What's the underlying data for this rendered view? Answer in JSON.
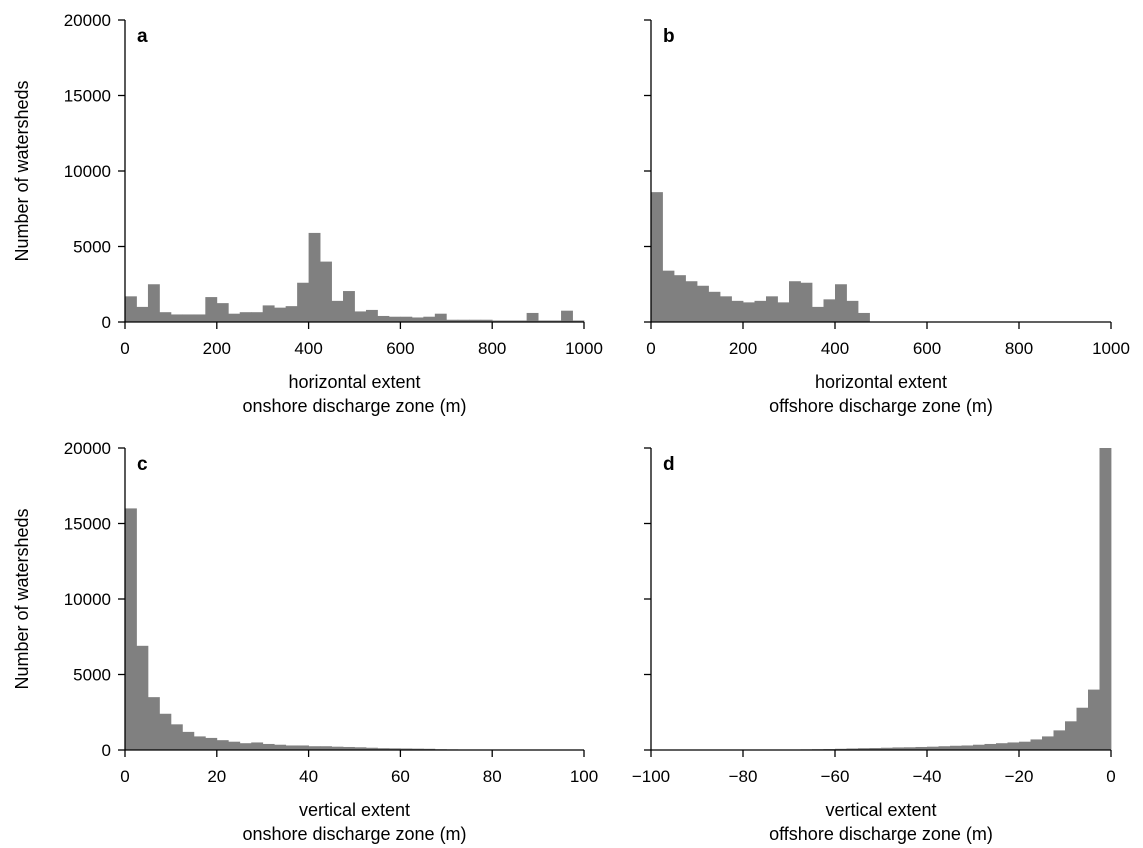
{
  "figure": {
    "bar_color": "#808080",
    "y_axis_label": "Number of watersheds"
  },
  "chart_data": [
    {
      "panel": "a",
      "type": "bar",
      "bin_width": 25,
      "x_start": 0,
      "values": [
        1700,
        1000,
        2500,
        650,
        500,
        500,
        500,
        1650,
        1250,
        550,
        650,
        650,
        1100,
        950,
        1050,
        2600,
        5900,
        4000,
        1400,
        2050,
        700,
        800,
        400,
        350,
        350,
        300,
        350,
        550,
        150,
        150,
        150,
        150,
        100,
        100,
        100,
        600,
        100,
        100,
        750,
        100
      ],
      "xlim": [
        0,
        1000
      ],
      "ylim": [
        0,
        20000
      ],
      "xticks": [
        "0",
        "200",
        "400",
        "600",
        "800",
        "1000"
      ],
      "yticks": [
        "0",
        "5000",
        "10000",
        "15000",
        "20000"
      ],
      "xlabel": [
        "horizontal extent",
        "onshore discharge zone (m)"
      ],
      "ylabel": "Number of watersheds"
    },
    {
      "panel": "b",
      "type": "bar",
      "bin_width": 25,
      "x_start": 0,
      "values": [
        8600,
        3400,
        3100,
        2700,
        2400,
        2000,
        1700,
        1400,
        1300,
        1400,
        1700,
        1300,
        2700,
        2600,
        1000,
        1500,
        2500,
        1400,
        600
      ],
      "xlim": [
        0,
        1000
      ],
      "ylim": [
        0,
        20000
      ],
      "xticks": [
        "0",
        "200",
        "400",
        "600",
        "800",
        "1000"
      ],
      "yticks": [
        "0",
        "5000",
        "10000",
        "15000",
        "20000"
      ],
      "xlabel": [
        "horizontal extent",
        "offshore discharge zone (m)"
      ],
      "ylabel": ""
    },
    {
      "panel": "c",
      "type": "bar",
      "bin_width": 2.5,
      "x_start": 0,
      "values": [
        16000,
        6900,
        3500,
        2400,
        1700,
        1200,
        900,
        800,
        650,
        550,
        450,
        500,
        400,
        350,
        300,
        300,
        250,
        250,
        220,
        200,
        180,
        150,
        120,
        110,
        100,
        90,
        80,
        50,
        40,
        30,
        30,
        20,
        20,
        20,
        15,
        15,
        10,
        10,
        10,
        10
      ],
      "xlim": [
        0,
        100
      ],
      "ylim": [
        0,
        20000
      ],
      "xticks": [
        "0",
        "20",
        "40",
        "60",
        "80",
        "100"
      ],
      "yticks": [
        "0",
        "5000",
        "10000",
        "15000",
        "20000"
      ],
      "xlabel": [
        "vertical extent",
        "onshore discharge zone (m)"
      ],
      "ylabel": "Number of watersheds"
    },
    {
      "panel": "d",
      "type": "bar",
      "bin_width": 2.5,
      "x_start": -100,
      "values": [
        10,
        10,
        10,
        10,
        10,
        10,
        10,
        10,
        20,
        20,
        20,
        20,
        30,
        40,
        50,
        60,
        80,
        100,
        120,
        130,
        150,
        170,
        180,
        200,
        220,
        250,
        280,
        300,
        350,
        400,
        450,
        500,
        550,
        700,
        900,
        1300,
        1900,
        2800,
        4000,
        20000
      ],
      "xlim": [
        -100,
        0
      ],
      "ylim": [
        0,
        20000
      ],
      "xticks": [
        "−100",
        "−80",
        "−60",
        "−40",
        "−20",
        "0"
      ],
      "yticks": [
        "0",
        "5000",
        "10000",
        "15000",
        "20000"
      ],
      "xlabel": [
        "vertical extent",
        "offshore discharge zone (m)"
      ],
      "ylabel": ""
    }
  ]
}
